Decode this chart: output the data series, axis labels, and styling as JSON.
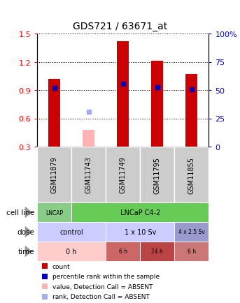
{
  "title": "GDS721 / 63671_at",
  "samples": [
    "GSM11879",
    "GSM11743",
    "GSM11749",
    "GSM11795",
    "GSM11855"
  ],
  "bar_values": [
    1.02,
    null,
    1.42,
    1.21,
    1.07
  ],
  "bar_absent_values": [
    null,
    0.48,
    null,
    null,
    null
  ],
  "rank_values": [
    0.92,
    null,
    0.97,
    0.93,
    0.91
  ],
  "rank_absent_values": [
    null,
    0.67,
    null,
    null,
    null
  ],
  "ylim": [
    0.3,
    1.5
  ],
  "yticks": [
    0.3,
    0.6,
    0.9,
    1.2,
    1.5
  ],
  "y2ticks": [
    0,
    25,
    50,
    75,
    100
  ],
  "y2labels": [
    "0",
    "25",
    "50",
    "75",
    "100%"
  ],
  "bar_color": "#cc0000",
  "bar_absent_color": "#ffb3b3",
  "rank_color": "#0000bb",
  "rank_absent_color": "#aaaaee",
  "cell_line_segments": [
    [
      "LNCAP",
      0,
      1
    ],
    [
      "LNCaP C4-2",
      1,
      5
    ]
  ],
  "cell_line_colors": [
    "#88cc88",
    "#66cc55"
  ],
  "dose_segments": [
    [
      "control",
      0,
      2
    ],
    [
      "1 x 10 Sv",
      2,
      4
    ],
    [
      "4 x 2.5 Sv",
      4,
      5
    ]
  ],
  "dose_colors": [
    "#ccccff",
    "#ccccff",
    "#9999cc"
  ],
  "time_segments": [
    [
      "0 h",
      0,
      2
    ],
    [
      "6 h",
      2,
      3
    ],
    [
      "24 h",
      3,
      4
    ],
    [
      "6 h",
      4,
      5
    ]
  ],
  "time_colors": [
    "#ffcccc",
    "#cc6666",
    "#bb4444",
    "#cc7777"
  ],
  "row_labels": [
    "cell line",
    "dose",
    "time"
  ],
  "legend_items": [
    {
      "color": "#cc0000",
      "label": "count"
    },
    {
      "color": "#0000bb",
      "label": "percentile rank within the sample"
    },
    {
      "color": "#ffb3b3",
      "label": "value, Detection Call = ABSENT"
    },
    {
      "color": "#aaaaee",
      "label": "rank, Detection Call = ABSENT"
    }
  ],
  "sample_label_bg": "#cccccc",
  "bar_width": 0.35
}
